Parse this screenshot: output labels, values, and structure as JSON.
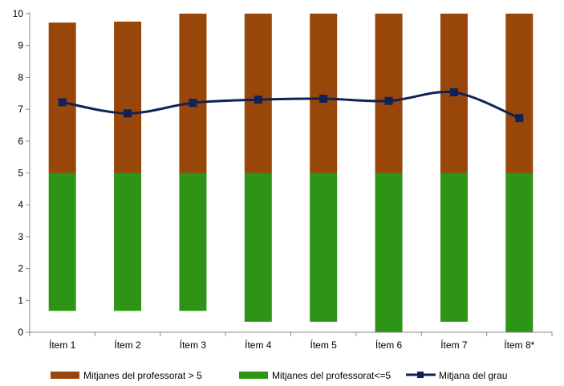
{
  "chart_data": {
    "type": "bar",
    "categories": [
      "Ítem 1",
      "Ítem 2",
      "Ítem 3",
      "Ítem 4",
      "Ítem 5",
      "Ítem 6",
      "Ítem 7",
      "Ítem 8*"
    ],
    "ylim": [
      0,
      10
    ],
    "yticks": [
      "0",
      "1",
      "2",
      "3",
      "4",
      "5",
      "6",
      "7",
      "8",
      "9",
      "10"
    ],
    "grid": false,
    "legend_position": "bottom",
    "series": [
      {
        "name": "Mitjanes del professorat<=5",
        "kind": "floating-bar",
        "color": "#2e9416",
        "low": [
          0.67,
          0.67,
          0.67,
          0.33,
          0.33,
          0.0,
          0.33,
          0.0
        ],
        "high": [
          5,
          5,
          5,
          5,
          5,
          5,
          5,
          5
        ]
      },
      {
        "name": "Mitjanes del professorat > 5",
        "kind": "floating-bar",
        "color": "#99460a",
        "low": [
          5,
          5,
          5,
          5,
          5,
          5,
          5,
          5
        ],
        "high": [
          9.72,
          9.75,
          10,
          10,
          10,
          10,
          10,
          10
        ]
      },
      {
        "name": "Mitjana del grau",
        "kind": "line",
        "color": "#0f2356",
        "values": [
          7.22,
          6.87,
          7.2,
          7.3,
          7.33,
          7.26,
          7.53,
          6.72
        ]
      }
    ],
    "legend": [
      "Mitjanes del professorat > 5",
      "Mitjanes del professorat<=5",
      "Mitjana del grau"
    ]
  }
}
